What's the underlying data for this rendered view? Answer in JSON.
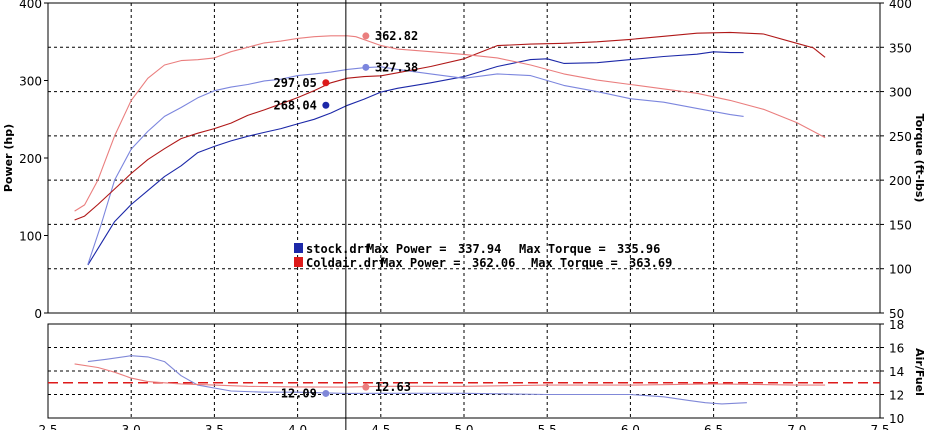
{
  "chart_data": [
    {
      "type": "line",
      "name": "power-torque",
      "x_range": [
        2.5,
        7.5
      ],
      "x_ticks": [
        "2.5",
        "3.0",
        "3.5",
        "4.0",
        "4.5",
        "5.0",
        "5.5",
        "6.0",
        "6.5",
        "7.0",
        "7.5"
      ],
      "y_left": {
        "label": "Power (hp)",
        "range": [
          0,
          400
        ],
        "ticks": [
          "0",
          "100",
          "200",
          "300",
          "400"
        ]
      },
      "y_right": {
        "label": "Torque (ft-lbs)",
        "range": [
          50,
          400
        ],
        "ticks": [
          "50",
          "100",
          "150",
          "200",
          "250",
          "300",
          "350",
          "400"
        ]
      },
      "grid": true,
      "cursor_x": 4.29,
      "series": [
        {
          "name": "stock.drf",
          "measure": "power",
          "axis": "left",
          "color": "#1c28a8",
          "x": [
            2.74,
            2.82,
            2.9,
            3.0,
            3.1,
            3.2,
            3.3,
            3.4,
            3.5,
            3.6,
            3.7,
            3.8,
            3.9,
            4.0,
            4.1,
            4.2,
            4.3,
            4.4,
            4.5,
            4.6,
            4.8,
            5.0,
            5.2,
            5.4,
            5.5,
            5.6,
            5.8,
            6.0,
            6.2,
            6.4,
            6.5,
            6.6,
            6.68
          ],
          "y": [
            62,
            90,
            118,
            140,
            158,
            176,
            190,
            207,
            215,
            222,
            228,
            233,
            238,
            244,
            250,
            258,
            268,
            276,
            285,
            290,
            297,
            305,
            318,
            327,
            328,
            322,
            323,
            327,
            331,
            334,
            337,
            336,
            336
          ]
        },
        {
          "name": "stock.drf",
          "measure": "torque",
          "axis": "right",
          "color": "#7c86de",
          "x": [
            2.74,
            2.82,
            2.9,
            3.0,
            3.1,
            3.2,
            3.3,
            3.4,
            3.5,
            3.6,
            3.7,
            3.8,
            3.9,
            4.0,
            4.1,
            4.2,
            4.3,
            4.4,
            4.5,
            4.6,
            4.8,
            5.0,
            5.2,
            5.4,
            5.6,
            5.8,
            6.0,
            6.2,
            6.4,
            6.6,
            6.68
          ],
          "y": [
            105,
            150,
            200,
            235,
            255,
            272,
            282,
            293,
            301,
            305,
            308,
            312,
            314,
            318,
            320,
            322,
            325,
            327,
            328,
            325,
            320,
            315,
            320,
            318,
            307,
            300,
            292,
            288,
            281,
            274,
            272
          ]
        },
        {
          "name": "Coldair.drf",
          "measure": "power",
          "axis": "left",
          "color": "#b01818",
          "x": [
            2.66,
            2.72,
            2.8,
            2.9,
            3.0,
            3.1,
            3.2,
            3.3,
            3.4,
            3.5,
            3.6,
            3.7,
            3.8,
            3.9,
            4.0,
            4.1,
            4.2,
            4.3,
            4.4,
            4.5,
            4.6,
            4.8,
            5.0,
            5.2,
            5.4,
            5.6,
            5.8,
            6.0,
            6.2,
            6.4,
            6.6,
            6.8,
            7.0,
            7.1,
            7.17
          ],
          "y": [
            120,
            125,
            140,
            160,
            180,
            198,
            212,
            225,
            232,
            238,
            245,
            255,
            262,
            270,
            278,
            287,
            297,
            303,
            305,
            306,
            310,
            318,
            328,
            345,
            347,
            348,
            350,
            353,
            357,
            361,
            362,
            360,
            348,
            342,
            330
          ]
        },
        {
          "name": "Coldair.drf",
          "measure": "torque",
          "axis": "right",
          "color": "#ea7e7e",
          "x": [
            2.66,
            2.72,
            2.8,
            2.9,
            3.0,
            3.1,
            3.2,
            3.3,
            3.4,
            3.5,
            3.6,
            3.7,
            3.8,
            3.9,
            4.0,
            4.1,
            4.2,
            4.3,
            4.35,
            4.5,
            4.6,
            4.8,
            5.0,
            5.2,
            5.4,
            5.6,
            5.8,
            6.0,
            6.2,
            6.4,
            6.6,
            6.8,
            7.0,
            7.1,
            7.17
          ],
          "y": [
            165,
            172,
            200,
            250,
            290,
            315,
            330,
            335,
            336,
            338,
            345,
            350,
            355,
            357,
            360,
            362,
            363,
            363,
            362,
            352,
            348,
            345,
            342,
            338,
            330,
            320,
            313,
            308,
            303,
            298,
            290,
            280,
            265,
            255,
            248
          ]
        }
      ],
      "markers": [
        {
          "label": "362.82",
          "x": 4.29,
          "y": 362.82,
          "axis": "right",
          "color": "#ea7e7e"
        },
        {
          "label": "327.38",
          "x": 4.29,
          "y": 327.38,
          "axis": "right",
          "color": "#7c86de"
        },
        {
          "label": "297.05",
          "x": 4.29,
          "y": 297.05,
          "axis": "left",
          "color": "#dd1a1a"
        },
        {
          "label": "268.04",
          "x": 4.29,
          "y": 268.04,
          "axis": "left",
          "color": "#1c28a8"
        }
      ],
      "legend": [
        {
          "file": "stock.drf",
          "max_power_label": "Max Power =",
          "max_power": "337.94",
          "max_torque_label": "Max Torque =",
          "max_torque": "335.96",
          "color": "#1c28a8"
        },
        {
          "file": "Coldair.drf",
          "max_power_label": "Max Power =",
          "max_power": "362.06",
          "max_torque_label": "Max Torque =",
          "max_torque": "363.69",
          "color": "#dd1a1a"
        }
      ],
      "legend_placement": "center"
    },
    {
      "type": "line",
      "name": "air-fuel",
      "x_range": [
        2.5,
        7.5
      ],
      "y_right": {
        "label": "Air/Fuel",
        "range": [
          10,
          18
        ],
        "ticks": [
          "10",
          "12",
          "14",
          "16",
          "18"
        ]
      },
      "grid": true,
      "reference_line": {
        "y": 13,
        "style": "dashed",
        "color": "#dd1a1a"
      },
      "series": [
        {
          "name": "stock.drf",
          "measure": "air-fuel",
          "axis": "right",
          "color": "#8088d8",
          "x": [
            2.74,
            2.85,
            3.0,
            3.1,
            3.2,
            3.3,
            3.4,
            3.6,
            3.8,
            4.0,
            4.29,
            4.5,
            5.0,
            5.5,
            6.0,
            6.2,
            6.35,
            6.45,
            6.55,
            6.7
          ],
          "y": [
            14.8,
            15.0,
            15.3,
            15.2,
            14.8,
            13.6,
            12.8,
            12.3,
            12.2,
            12.2,
            12.09,
            12.1,
            12.1,
            12.0,
            12.0,
            11.8,
            11.5,
            11.3,
            11.2,
            11.3
          ]
        },
        {
          "name": "Coldair.drf",
          "measure": "air-fuel",
          "axis": "right",
          "color": "#ea7e7e",
          "x": [
            2.66,
            2.8,
            2.9,
            3.0,
            3.1,
            3.2,
            3.3,
            3.5,
            3.7,
            4.0,
            4.29,
            4.5,
            5.0,
            5.5,
            6.0,
            6.5,
            7.0,
            7.17
          ],
          "y": [
            14.6,
            14.3,
            13.9,
            13.4,
            13.1,
            13.0,
            12.9,
            12.8,
            12.7,
            12.65,
            12.63,
            12.7,
            12.7,
            12.8,
            12.8,
            12.9,
            12.8,
            12.8
          ]
        }
      ],
      "markers": [
        {
          "label": "12.63",
          "x": 4.29,
          "y": 12.63,
          "color": "#ea7e7e"
        },
        {
          "label": "12.09",
          "x": 4.29,
          "y": 12.09,
          "color": "#8088d8"
        }
      ]
    }
  ]
}
